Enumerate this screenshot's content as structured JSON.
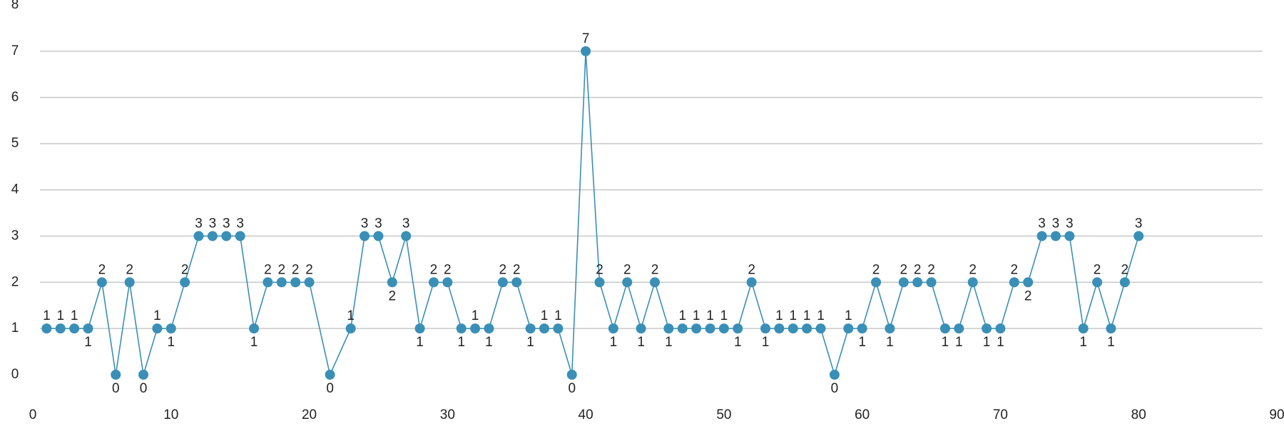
{
  "chart_data": {
    "type": "line",
    "x": [
      1,
      2,
      3,
      4,
      5,
      6,
      7,
      8,
      9,
      10,
      11,
      12,
      13,
      14,
      15,
      16,
      17,
      18,
      19,
      20,
      21.5,
      23,
      24,
      25,
      26,
      27,
      28,
      29,
      30,
      31,
      32,
      33,
      34,
      35,
      36,
      37,
      38,
      39,
      40,
      41,
      42,
      43,
      44,
      45,
      46,
      47,
      48,
      49,
      50,
      51,
      52,
      53,
      54,
      55,
      56,
      57,
      58,
      59,
      60,
      61,
      62,
      63,
      64,
      65,
      66,
      67,
      68,
      69,
      70,
      71,
      72,
      73,
      74,
      75,
      76,
      77,
      78,
      79,
      80
    ],
    "series": [
      {
        "color": "#3a8fb7",
        "values": [
          1,
          1,
          1,
          1,
          2,
          0,
          2,
          0,
          1,
          1,
          2,
          3,
          3,
          3,
          3,
          1,
          2,
          2,
          2,
          2,
          0,
          1,
          3,
          3,
          2,
          3,
          1,
          2,
          2,
          1,
          1,
          1,
          2,
          2,
          1,
          1,
          1,
          0,
          7,
          2,
          1,
          2,
          1,
          2,
          1,
          1,
          1,
          1,
          1,
          1,
          2,
          1,
          1,
          1,
          1,
          1,
          0,
          1,
          1,
          2,
          1,
          2,
          2,
          2,
          1,
          1,
          2,
          1,
          1,
          2,
          2,
          3,
          3,
          3,
          1,
          2,
          1,
          2,
          3
        ]
      }
    ],
    "xlim": [
      0,
      90
    ],
    "xticks": [
      0,
      10,
      20,
      30,
      40,
      50,
      60,
      70,
      80,
      90
    ],
    "ylim": [
      0,
      8
    ],
    "yticks": [
      0,
      1,
      2,
      3,
      4,
      5,
      6,
      7,
      8
    ],
    "grid": true
  }
}
